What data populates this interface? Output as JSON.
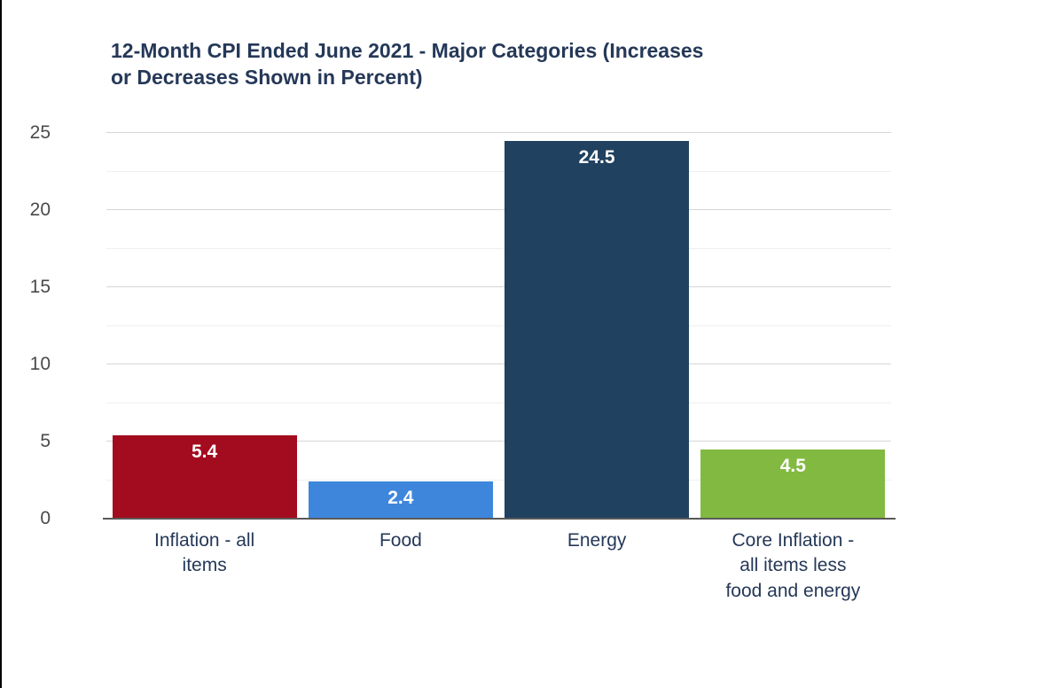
{
  "chart_data": {
    "type": "bar",
    "title": "12-Month CPI Ended June 2021 - Major Categories (Increases or Decreases Shown in Percent)",
    "title_lines": [
      "12-Month CPI Ended June 2021 - Major Categories (Increases",
      "or Decreases Shown in Percent)"
    ],
    "categories": [
      "Inflation - all items",
      "Food",
      "Energy",
      "Core Inflation - all items less food and energy"
    ],
    "values": [
      5.4,
      2.4,
      24.5,
      4.5
    ],
    "value_labels": [
      "5.4",
      "2.4",
      "24.5",
      "4.5"
    ],
    "bar_colors": [
      "#a30b1e",
      "#3e86dc",
      "#20415f",
      "#82ba41"
    ],
    "xlabel": "",
    "ylabel": "",
    "ylim": [
      0,
      25
    ],
    "yticks": [
      0,
      5,
      10,
      15,
      20,
      25
    ],
    "grid": true,
    "legend": "none",
    "colors": {
      "title_text": "#253858",
      "axis_text": "#4a4a4a",
      "category_text": "#253858",
      "value_label_text": "#ffffff",
      "gridline_major": "#d6d6d6",
      "gridline_minor": "#efefef",
      "axis_line": "#595959",
      "background": "#ffffff",
      "left_border": "#000000"
    }
  }
}
